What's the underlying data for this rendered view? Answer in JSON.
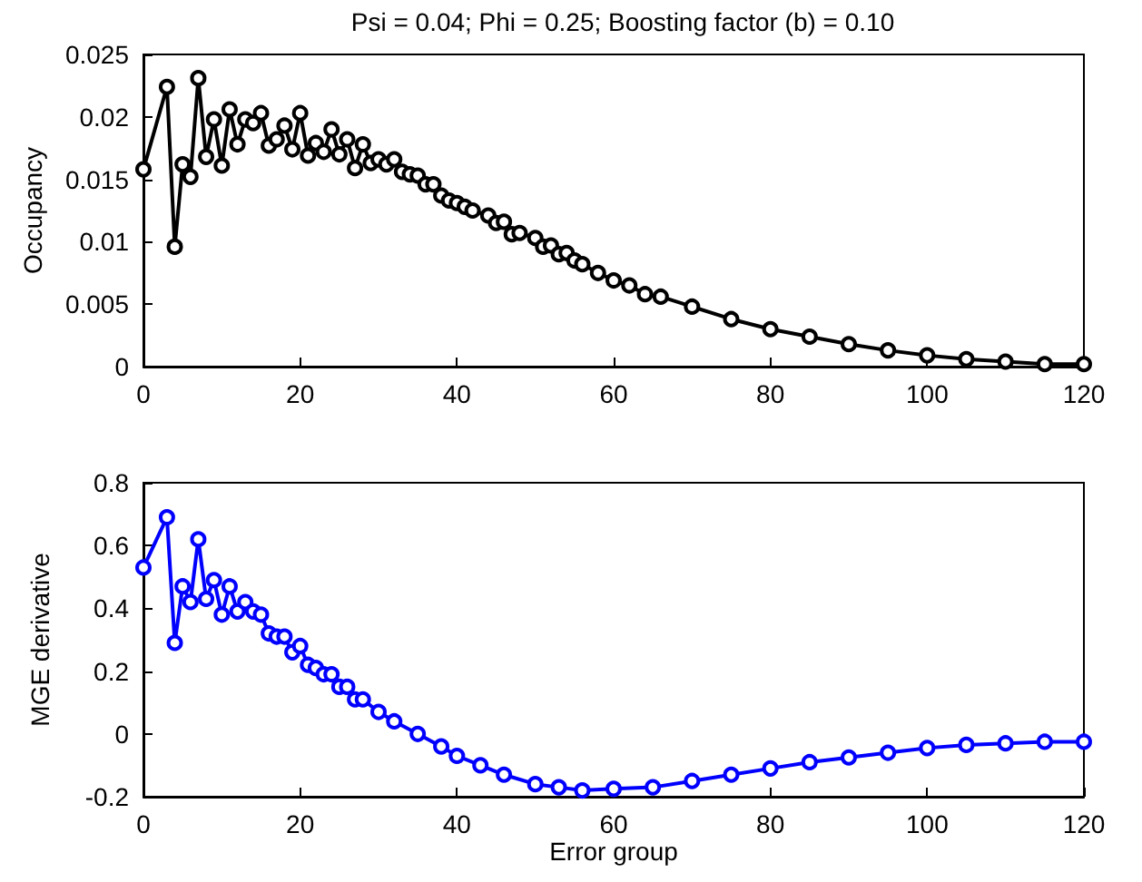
{
  "chart_data": [
    {
      "type": "line",
      "title": "Psi = 0.04; Phi = 0.25; Boosting factor (b) = 0.10",
      "ylabel": "Occupancy",
      "marker": "circle",
      "line_style": "solid",
      "grid": false,
      "xlim": [
        0,
        120
      ],
      "xticks": [
        0,
        20,
        40,
        60,
        80,
        100,
        120
      ],
      "ylim": [
        0,
        0.025
      ],
      "yticks": [
        0,
        0.005,
        0.01,
        0.015,
        0.02,
        0.025
      ],
      "series": [
        {
          "color": "#000000",
          "x": [
            0,
            3,
            4,
            5,
            6,
            7,
            8,
            9,
            10,
            11,
            12,
            13,
            14,
            15,
            16,
            17,
            18,
            19,
            20,
            21,
            22,
            23,
            24,
            25,
            26,
            27,
            28,
            29,
            30,
            31,
            32,
            33,
            34,
            35,
            36,
            37,
            38,
            39,
            40,
            41,
            42,
            44,
            45,
            46,
            47,
            48,
            50,
            51,
            52,
            53,
            54,
            55,
            56,
            58,
            60,
            62,
            64,
            66,
            70,
            75,
            80,
            85,
            90,
            95,
            100,
            105,
            110,
            115,
            120
          ],
          "values": [
            0.0158,
            0.0224,
            0.0096,
            0.0162,
            0.0152,
            0.0231,
            0.0168,
            0.0198,
            0.0161,
            0.0206,
            0.0178,
            0.0198,
            0.0195,
            0.0203,
            0.0177,
            0.0182,
            0.0193,
            0.0174,
            0.0203,
            0.0169,
            0.0179,
            0.0172,
            0.019,
            0.017,
            0.0182,
            0.0159,
            0.0178,
            0.0163,
            0.0166,
            0.0162,
            0.0166,
            0.0156,
            0.0154,
            0.0153,
            0.0146,
            0.0146,
            0.0137,
            0.0133,
            0.0131,
            0.0128,
            0.0125,
            0.0121,
            0.0115,
            0.0116,
            0.0106,
            0.0107,
            0.0103,
            0.0096,
            0.0097,
            0.009,
            0.0091,
            0.0085,
            0.0082,
            0.0075,
            0.0069,
            0.0065,
            0.0058,
            0.0056,
            0.0048,
            0.0038,
            0.003,
            0.0024,
            0.0018,
            0.0013,
            0.0009,
            0.0006,
            0.0004,
            0.0002,
            0.0002
          ]
        }
      ]
    },
    {
      "type": "line",
      "xlabel": "Error group",
      "ylabel": "MGE derivative",
      "marker": "circle",
      "line_style": "solid",
      "grid": false,
      "xlim": [
        0,
        120
      ],
      "xticks": [
        0,
        20,
        40,
        60,
        80,
        100,
        120
      ],
      "ylim": [
        -0.2,
        0.8
      ],
      "yticks": [
        -0.2,
        0,
        0.2,
        0.4,
        0.6,
        0.8
      ],
      "series": [
        {
          "color": "#0000ff",
          "x": [
            0,
            3,
            4,
            5,
            6,
            7,
            8,
            9,
            10,
            11,
            12,
            13,
            14,
            15,
            16,
            17,
            18,
            19,
            20,
            21,
            22,
            23,
            24,
            25,
            26,
            27,
            28,
            30,
            32,
            35,
            38,
            40,
            43,
            46,
            50,
            53,
            56,
            60,
            65,
            70,
            75,
            80,
            85,
            90,
            95,
            100,
            105,
            110,
            115,
            120
          ],
          "values": [
            0.53,
            0.69,
            0.29,
            0.47,
            0.42,
            0.62,
            0.43,
            0.49,
            0.38,
            0.47,
            0.39,
            0.42,
            0.39,
            0.38,
            0.32,
            0.31,
            0.31,
            0.26,
            0.28,
            0.22,
            0.21,
            0.19,
            0.19,
            0.15,
            0.15,
            0.11,
            0.11,
            0.07,
            0.04,
            0,
            -0.04,
            -0.07,
            -0.1,
            -0.13,
            -0.16,
            -0.17,
            -0.18,
            -0.175,
            -0.17,
            -0.15,
            -0.13,
            -0.11,
            -0.09,
            -0.075,
            -0.06,
            -0.045,
            -0.035,
            -0.03,
            -0.025,
            -0.025
          ]
        }
      ]
    }
  ]
}
